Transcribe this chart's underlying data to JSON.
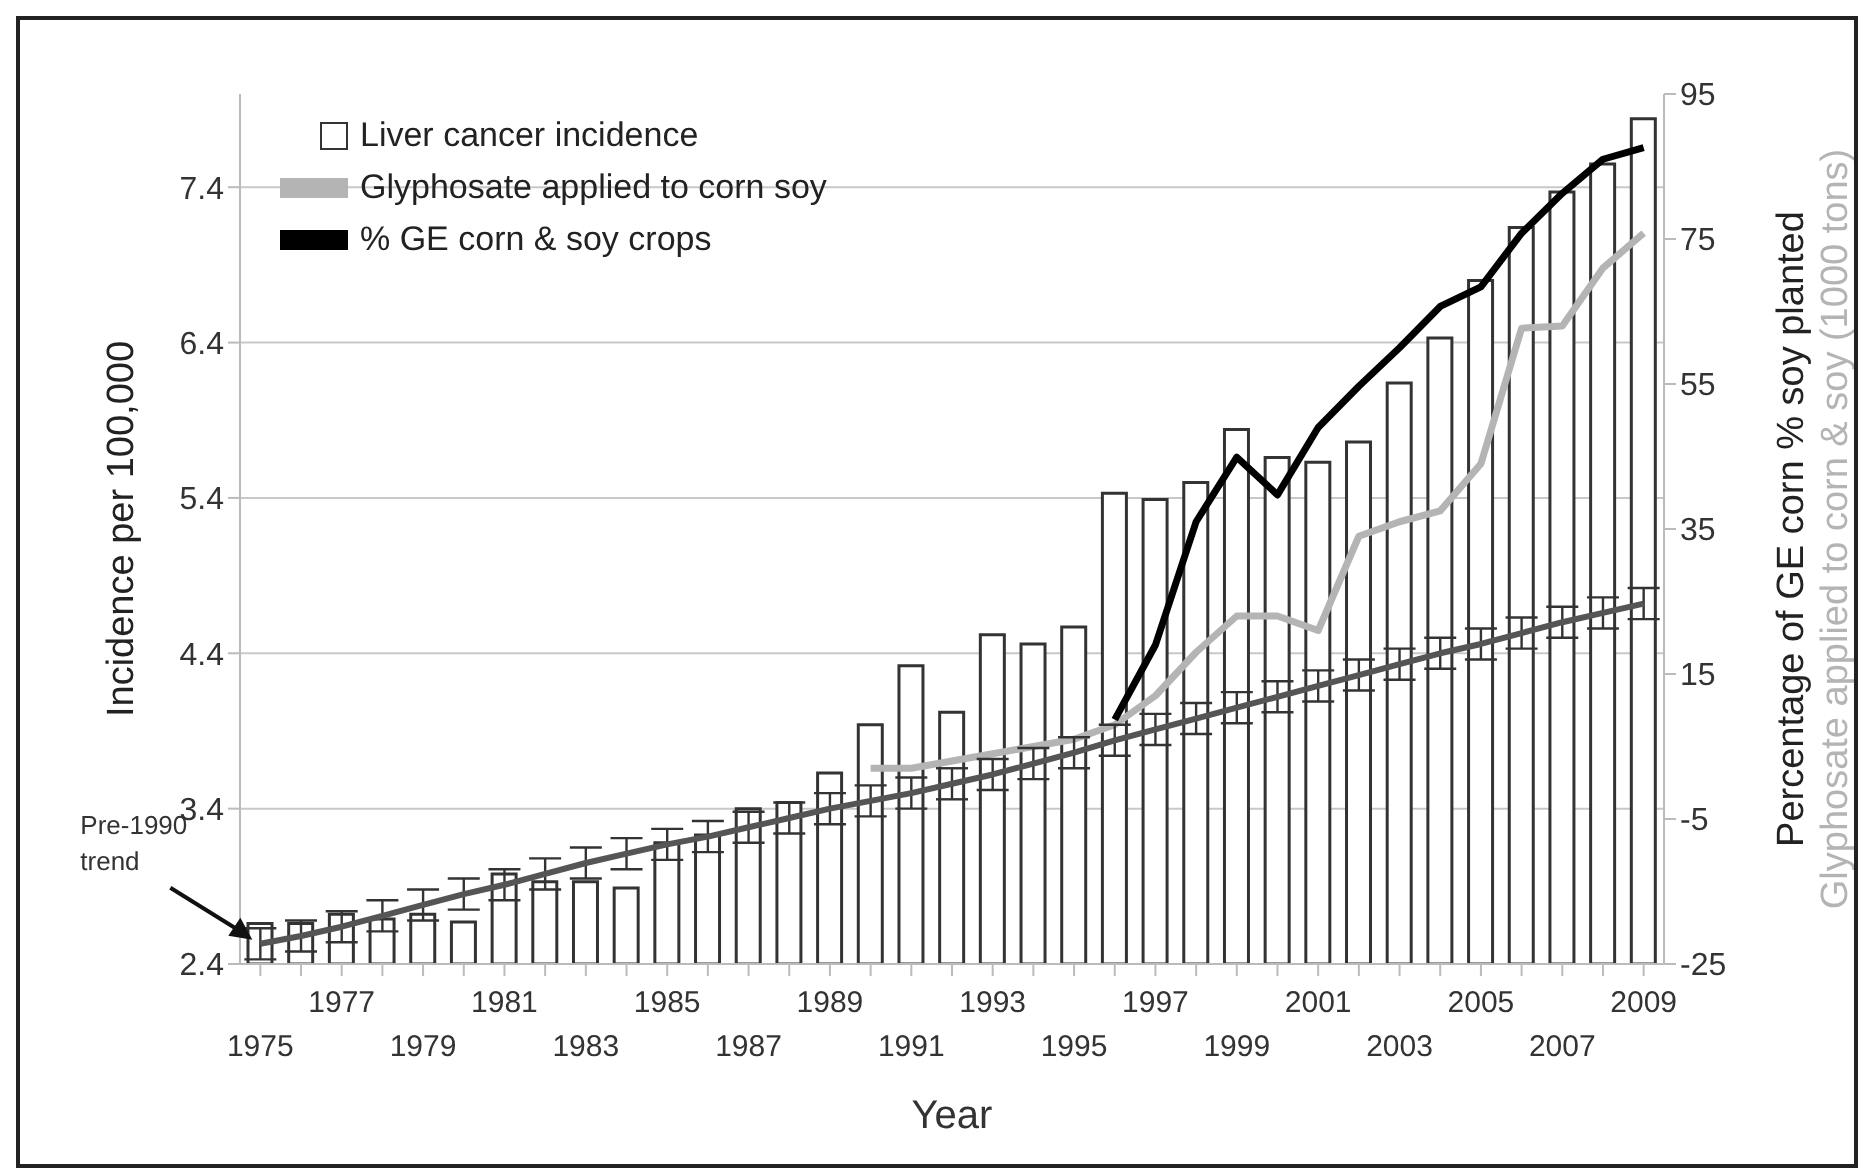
{
  "chart_data": {
    "type": "bar",
    "xlabel": "Year",
    "ylabel": "Incidence per 100,000",
    "y2label": "Percentage of GE corn % soy planted",
    "y3label": "Glyphosate applied to corn & soy (1000 tons)",
    "categories": [
      "1975",
      null,
      "1977",
      null,
      "1979",
      null,
      "1981",
      null,
      "1983",
      null,
      "1985",
      null,
      "1987",
      null,
      "1989",
      null,
      "1991",
      null,
      "1993",
      null,
      "1995",
      null,
      "1997",
      null,
      "1999",
      null,
      "2001",
      null,
      "2003",
      null,
      "2005",
      null,
      "2007",
      null,
      "2009"
    ],
    "series": [
      {
        "name": "Liver cancer incidence",
        "color": "#333333",
        "values": [
          2.66,
          2.66,
          2.72,
          2.69,
          2.72,
          2.67,
          2.98,
          2.93,
          2.93,
          2.89,
          3.18,
          3.23,
          3.4,
          3.44,
          3.63,
          3.94,
          4.32,
          4.02,
          4.52,
          4.46,
          4.57,
          5.43,
          5.39,
          5.5,
          5.84,
          5.66,
          5.63,
          5.76,
          6.14,
          6.43,
          6.8,
          7.14,
          7.37,
          7.55,
          7.84
        ]
      },
      {
        "name": "Glyphosate applied to corn soy",
        "type": "line",
        "axis": "y2",
        "color": "#b4b4b4",
        "values": [
          null,
          null,
          null,
          null,
          null,
          null,
          null,
          null,
          null,
          null,
          null,
          null,
          null,
          null,
          null,
          2,
          2,
          3,
          4,
          5,
          6,
          8,
          12,
          18,
          23,
          23,
          21,
          34,
          36,
          37.5,
          44,
          62.7,
          63,
          71,
          75.8
        ]
      },
      {
        "name": "% GE corn & soy crops",
        "type": "line",
        "axis": "y2",
        "color": "#000000",
        "values": [
          null,
          null,
          null,
          null,
          null,
          null,
          null,
          null,
          null,
          null,
          null,
          null,
          null,
          null,
          null,
          null,
          null,
          null,
          null,
          null,
          null,
          8.7,
          19,
          36,
          44.9,
          39.7,
          49,
          54.7,
          60,
          65.7,
          68.4,
          75.8,
          81.3,
          86,
          87.6
        ]
      },
      {
        "type": "line",
        "color": "#555555",
        "values": [
          2.53,
          2.58,
          2.64,
          2.71,
          2.78,
          2.85,
          2.91,
          2.98,
          3.05,
          3.11,
          3.17,
          3.22,
          3.28,
          3.34,
          3.4,
          3.45,
          3.5,
          3.56,
          3.62,
          3.69,
          3.76,
          3.84,
          3.91,
          3.98,
          4.05,
          4.12,
          4.19,
          4.26,
          4.33,
          4.4,
          4.46,
          4.53,
          4.6,
          4.66,
          4.72
        ],
        "errors": [
          0.1,
          0.1,
          0.1,
          0.1,
          0.1,
          0.1,
          0.1,
          0.1,
          0.1,
          0.1,
          0.1,
          0.1,
          0.1,
          0.1,
          0.1,
          0.1,
          0.1,
          0.1,
          0.1,
          0.1,
          0.1,
          0.1,
          0.1,
          0.1,
          0.1,
          0.1,
          0.1,
          0.1,
          0.1,
          0.1,
          0.1,
          0.1,
          0.1,
          0.1,
          0.1
        ]
      }
    ],
    "ylim": [
      2.4,
      8.0
    ],
    "yticks": [
      2.4,
      3.4,
      4.4,
      5.4,
      6.4,
      7.4
    ],
    "y2lim": [
      -25,
      95
    ],
    "y2ticks": [
      -25,
      -5,
      15,
      35,
      55,
      75,
      95
    ],
    "annotations": [
      "Pre-1990 trend"
    ],
    "grid": "y",
    "legend": "top left",
    "marker": "none",
    "line_style": "solid"
  }
}
